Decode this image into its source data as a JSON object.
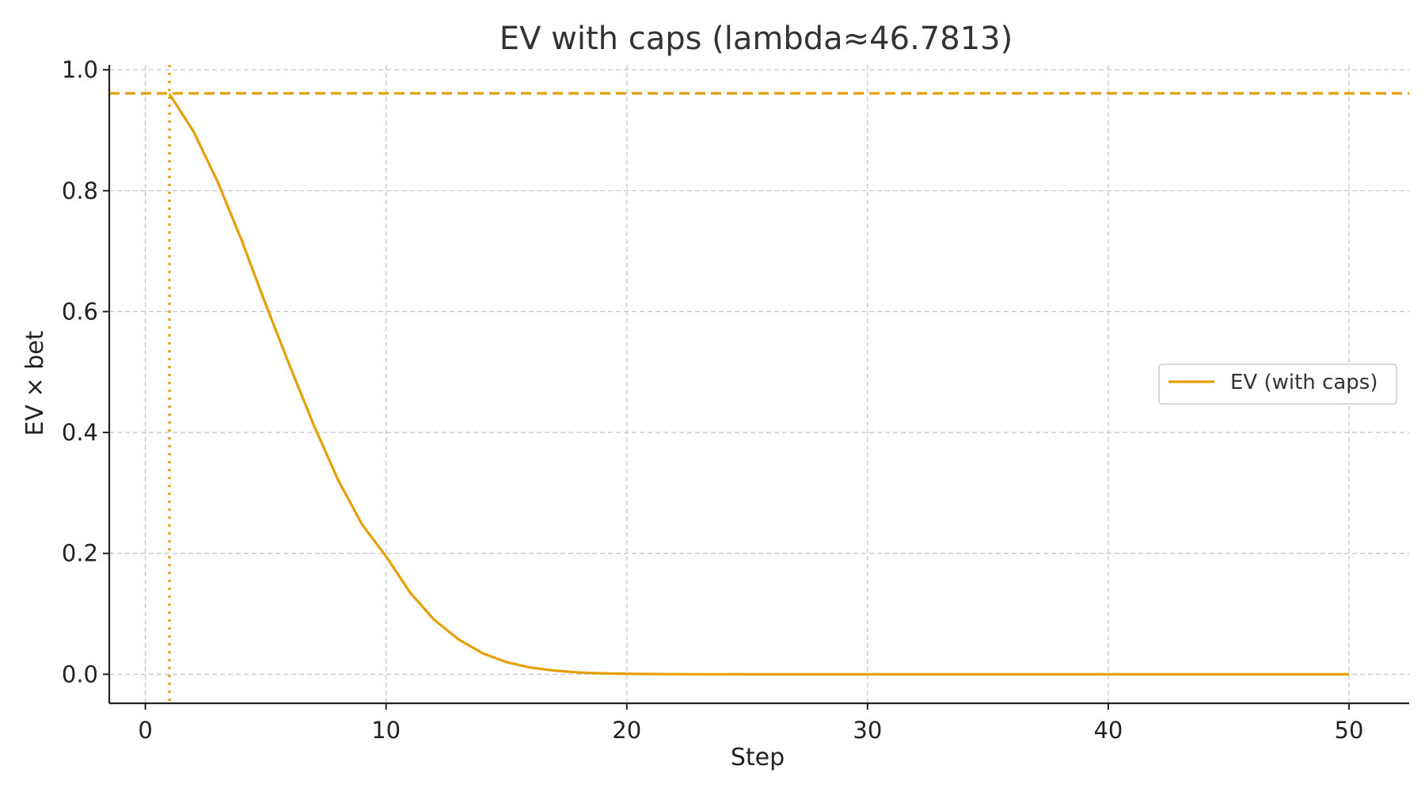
{
  "chart_data": {
    "type": "line",
    "title": "EV with caps (lambda≈46.7813)",
    "xlabel": "Step",
    "ylabel": "EV × bet",
    "xlim": [
      -1.5,
      52.5
    ],
    "ylim": [
      -0.048,
      1.008
    ],
    "xticks": [
      0,
      10,
      20,
      30,
      40,
      50
    ],
    "xtick_labels": [
      "0",
      "10",
      "20",
      "30",
      "40",
      "50"
    ],
    "yticks": [
      0.0,
      0.2,
      0.4,
      0.6,
      0.8,
      1.0
    ],
    "ytick_labels": [
      "0.0",
      "0.2",
      "0.4",
      "0.6",
      "0.8",
      "1.0"
    ],
    "grid": true,
    "legend": {
      "placement": "center-right",
      "entries": [
        "EV (with caps)"
      ]
    },
    "colors": {
      "series": "#e69f00",
      "reference": "#e69f00",
      "grid": "#c8c8c8",
      "axes": "#222222"
    },
    "series": [
      {
        "name": "EV (with caps)",
        "x": [
          1,
          2,
          3,
          4,
          5,
          6,
          7,
          8,
          9,
          10,
          11,
          12,
          13,
          14,
          15,
          16,
          17,
          18,
          19,
          20,
          21,
          22,
          23,
          24,
          25,
          26,
          27,
          28,
          29,
          30,
          31,
          32,
          33,
          34,
          35,
          36,
          37,
          38,
          39,
          40,
          41,
          42,
          43,
          44,
          45,
          46,
          47,
          48,
          49,
          50
        ],
        "y": [
          0.96,
          0.898,
          0.815,
          0.718,
          0.612,
          0.51,
          0.412,
          0.322,
          0.248,
          0.195,
          0.135,
          0.09,
          0.058,
          0.035,
          0.02,
          0.011,
          0.006,
          0.003,
          0.0015,
          0.0008,
          0.0004,
          0.0002,
          0.0001,
          5e-05,
          2e-05,
          0,
          0,
          0,
          0,
          0,
          0,
          0,
          0,
          0,
          0,
          0,
          0,
          0,
          0,
          0,
          0,
          0,
          0,
          0,
          0,
          0,
          0,
          0,
          0,
          0
        ]
      }
    ],
    "reference_lines": [
      {
        "orientation": "horizontal",
        "value": 0.961,
        "style": "dashed"
      },
      {
        "orientation": "vertical",
        "value": 1,
        "style": "dotted"
      }
    ]
  }
}
